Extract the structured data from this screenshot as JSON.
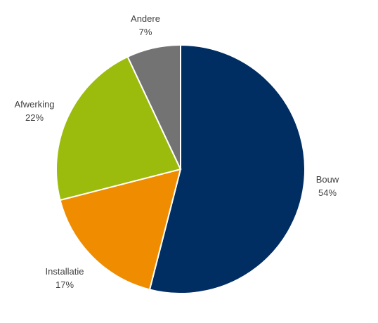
{
  "chart_data": {
    "type": "pie",
    "title": "",
    "start_angle_deg": 0,
    "direction": "clockwise",
    "slices": [
      {
        "label": "Bouw",
        "value": 54,
        "value_label": "54%",
        "color": "#002D62"
      },
      {
        "label": "Installatie",
        "value": 17,
        "value_label": "17%",
        "color": "#F08C00"
      },
      {
        "label": "Afwerking",
        "value": 22,
        "value_label": "22%",
        "color": "#9BBB0D"
      },
      {
        "label": "Andere",
        "value": 7,
        "value_label": "7%",
        "color": "#737373"
      }
    ],
    "legend": "none",
    "data_labels": "outside"
  }
}
